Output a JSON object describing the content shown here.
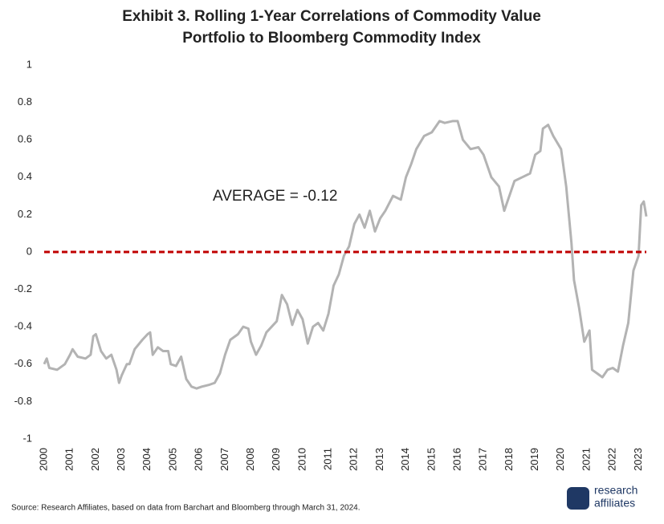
{
  "chart_data": {
    "type": "line",
    "title": [
      "Exhibit 3. Rolling 1-Year Correlations of Commodity Value",
      "Portfolio to Bloomberg Commodity Index"
    ],
    "annotation": "AVERAGE = -0.12",
    "source": "Source: Research Affiliates, based on data from Barchart and Bloomberg through March 31, 2024.",
    "brand": [
      "research",
      "affiliates"
    ],
    "color": "#b3b3b3",
    "reference_line": {
      "value": 0,
      "color": "#c00000"
    },
    "x": [
      2000.0,
      2000.1,
      2000.2,
      2000.5,
      2000.8,
      2001.0,
      2001.1,
      2001.3,
      2001.6,
      2001.8,
      2001.9,
      2002.0,
      2002.2,
      2002.4,
      2002.6,
      2002.8,
      2002.9,
      2003.0,
      2003.2,
      2003.3,
      2003.5,
      2003.8,
      2004.0,
      2004.1,
      2004.2,
      2004.4,
      2004.6,
      2004.8,
      2004.9,
      2005.1,
      2005.3,
      2005.5,
      2005.7,
      2005.9,
      2006.1,
      2006.4,
      2006.6,
      2006.8,
      2007.0,
      2007.2,
      2007.5,
      2007.7,
      2007.9,
      2008.0,
      2008.2,
      2008.4,
      2008.6,
      2008.8,
      2009.0,
      2009.1,
      2009.2,
      2009.4,
      2009.6,
      2009.8,
      2010.0,
      2010.2,
      2010.4,
      2010.6,
      2010.8,
      2011.0,
      2011.2,
      2011.4,
      2011.6,
      2011.8,
      2012.0,
      2012.2,
      2012.4,
      2012.6,
      2012.8,
      2013.0,
      2013.2,
      2013.5,
      2013.8,
      2014.0,
      2014.2,
      2014.4,
      2014.7,
      2015.0,
      2015.3,
      2015.5,
      2015.8,
      2016.0,
      2016.2,
      2016.5,
      2016.8,
      2017.0,
      2017.3,
      2017.6,
      2017.8,
      2018.0,
      2018.2,
      2018.5,
      2018.8,
      2019.0,
      2019.2,
      2019.3,
      2019.5,
      2019.7,
      2020.0,
      2020.2,
      2020.4,
      2020.5,
      2020.7,
      2020.9,
      2021.1,
      2021.2,
      2021.4,
      2021.6,
      2021.8,
      2022.0,
      2022.2,
      2022.4,
      2022.6,
      2022.8,
      2023.0,
      2023.1,
      2023.2,
      2023.3
    ],
    "values": [
      -0.6,
      -0.57,
      -0.62,
      -0.63,
      -0.6,
      -0.55,
      -0.52,
      -0.56,
      -0.57,
      -0.55,
      -0.45,
      -0.44,
      -0.53,
      -0.57,
      -0.55,
      -0.63,
      -0.7,
      -0.66,
      -0.6,
      -0.6,
      -0.52,
      -0.47,
      -0.44,
      -0.43,
      -0.55,
      -0.51,
      -0.53,
      -0.53,
      -0.6,
      -0.61,
      -0.56,
      -0.68,
      -0.72,
      -0.73,
      -0.72,
      -0.71,
      -0.7,
      -0.65,
      -0.55,
      -0.47,
      -0.44,
      -0.4,
      -0.41,
      -0.48,
      -0.55,
      -0.5,
      -0.43,
      -0.4,
      -0.37,
      -0.3,
      -0.23,
      -0.28,
      -0.39,
      -0.31,
      -0.36,
      -0.49,
      -0.4,
      -0.38,
      -0.42,
      -0.33,
      -0.18,
      -0.12,
      -0.02,
      0.03,
      0.15,
      0.2,
      0.13,
      0.22,
      0.11,
      0.18,
      0.22,
      0.3,
      0.28,
      0.4,
      0.47,
      0.55,
      0.62,
      0.64,
      0.7,
      0.69,
      0.7,
      0.7,
      0.6,
      0.55,
      0.56,
      0.52,
      0.4,
      0.35,
      0.22,
      0.3,
      0.38,
      0.4,
      0.42,
      0.52,
      0.54,
      0.66,
      0.68,
      0.62,
      0.55,
      0.35,
      0.05,
      -0.15,
      -0.3,
      -0.48,
      -0.42,
      -0.63,
      -0.65,
      -0.67,
      -0.63,
      -0.62,
      -0.64,
      -0.5,
      -0.38,
      -0.1,
      -0.02,
      0.25,
      0.27,
      0.19
    ],
    "xlim": [
      2000,
      2023.3
    ],
    "xticks": [
      2000,
      2001,
      2002,
      2003,
      2004,
      2005,
      2006,
      2007,
      2008,
      2009,
      2010,
      2011,
      2012,
      2013,
      2014,
      2015,
      2016,
      2017,
      2018,
      2019,
      2020,
      2021,
      2022,
      2023
    ],
    "ylim": [
      -1,
      1
    ],
    "yticks": [
      -1,
      -0.8,
      -0.6,
      -0.4,
      -0.2,
      0,
      0.2,
      0.4,
      0.6,
      0.8,
      1
    ]
  }
}
